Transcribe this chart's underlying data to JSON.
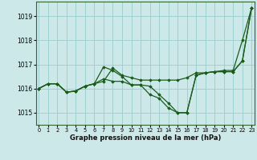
{
  "xlabel_label": "Graphe pression niveau de la mer (hPa)",
  "bg_color": "#cce8e8",
  "grid_color": "#99cccc",
  "line_color": "#1a5c1a",
  "marker_color": "#1a5c1a",
  "xlim": [
    -0.3,
    23.3
  ],
  "ylim": [
    1014.5,
    1019.6
  ],
  "yticks": [
    1015,
    1016,
    1017,
    1018,
    1019
  ],
  "xticks": [
    0,
    1,
    2,
    3,
    4,
    5,
    6,
    7,
    8,
    9,
    10,
    11,
    12,
    13,
    14,
    15,
    16,
    17,
    18,
    19,
    20,
    21,
    22,
    23
  ],
  "series": [
    [
      1016.0,
      1016.2,
      1016.2,
      1015.85,
      1015.9,
      1016.1,
      1016.2,
      1016.3,
      1016.85,
      1016.55,
      1016.45,
      1016.35,
      1016.35,
      1016.35,
      1016.35,
      1016.35,
      1016.45,
      1016.65,
      1016.65,
      1016.7,
      1016.75,
      1016.75,
      1018.0,
      1019.35
    ],
    [
      1016.0,
      1016.2,
      1016.2,
      1015.85,
      1015.9,
      1016.1,
      1016.2,
      1016.9,
      1016.75,
      1016.5,
      1016.15,
      1016.15,
      1016.1,
      1015.75,
      1015.4,
      1015.0,
      1015.0,
      1016.55,
      1016.65,
      1016.7,
      1016.7,
      1016.7,
      1017.15,
      1019.35
    ],
    [
      1016.0,
      1016.2,
      1016.2,
      1015.85,
      1015.9,
      1016.1,
      1016.2,
      1016.4,
      1016.3,
      1016.3,
      1016.15,
      1016.15,
      1015.75,
      1015.6,
      1015.2,
      1015.0,
      1015.0,
      1016.55,
      1016.65,
      1016.7,
      1016.7,
      1016.7,
      1017.15,
      1019.35
    ]
  ]
}
